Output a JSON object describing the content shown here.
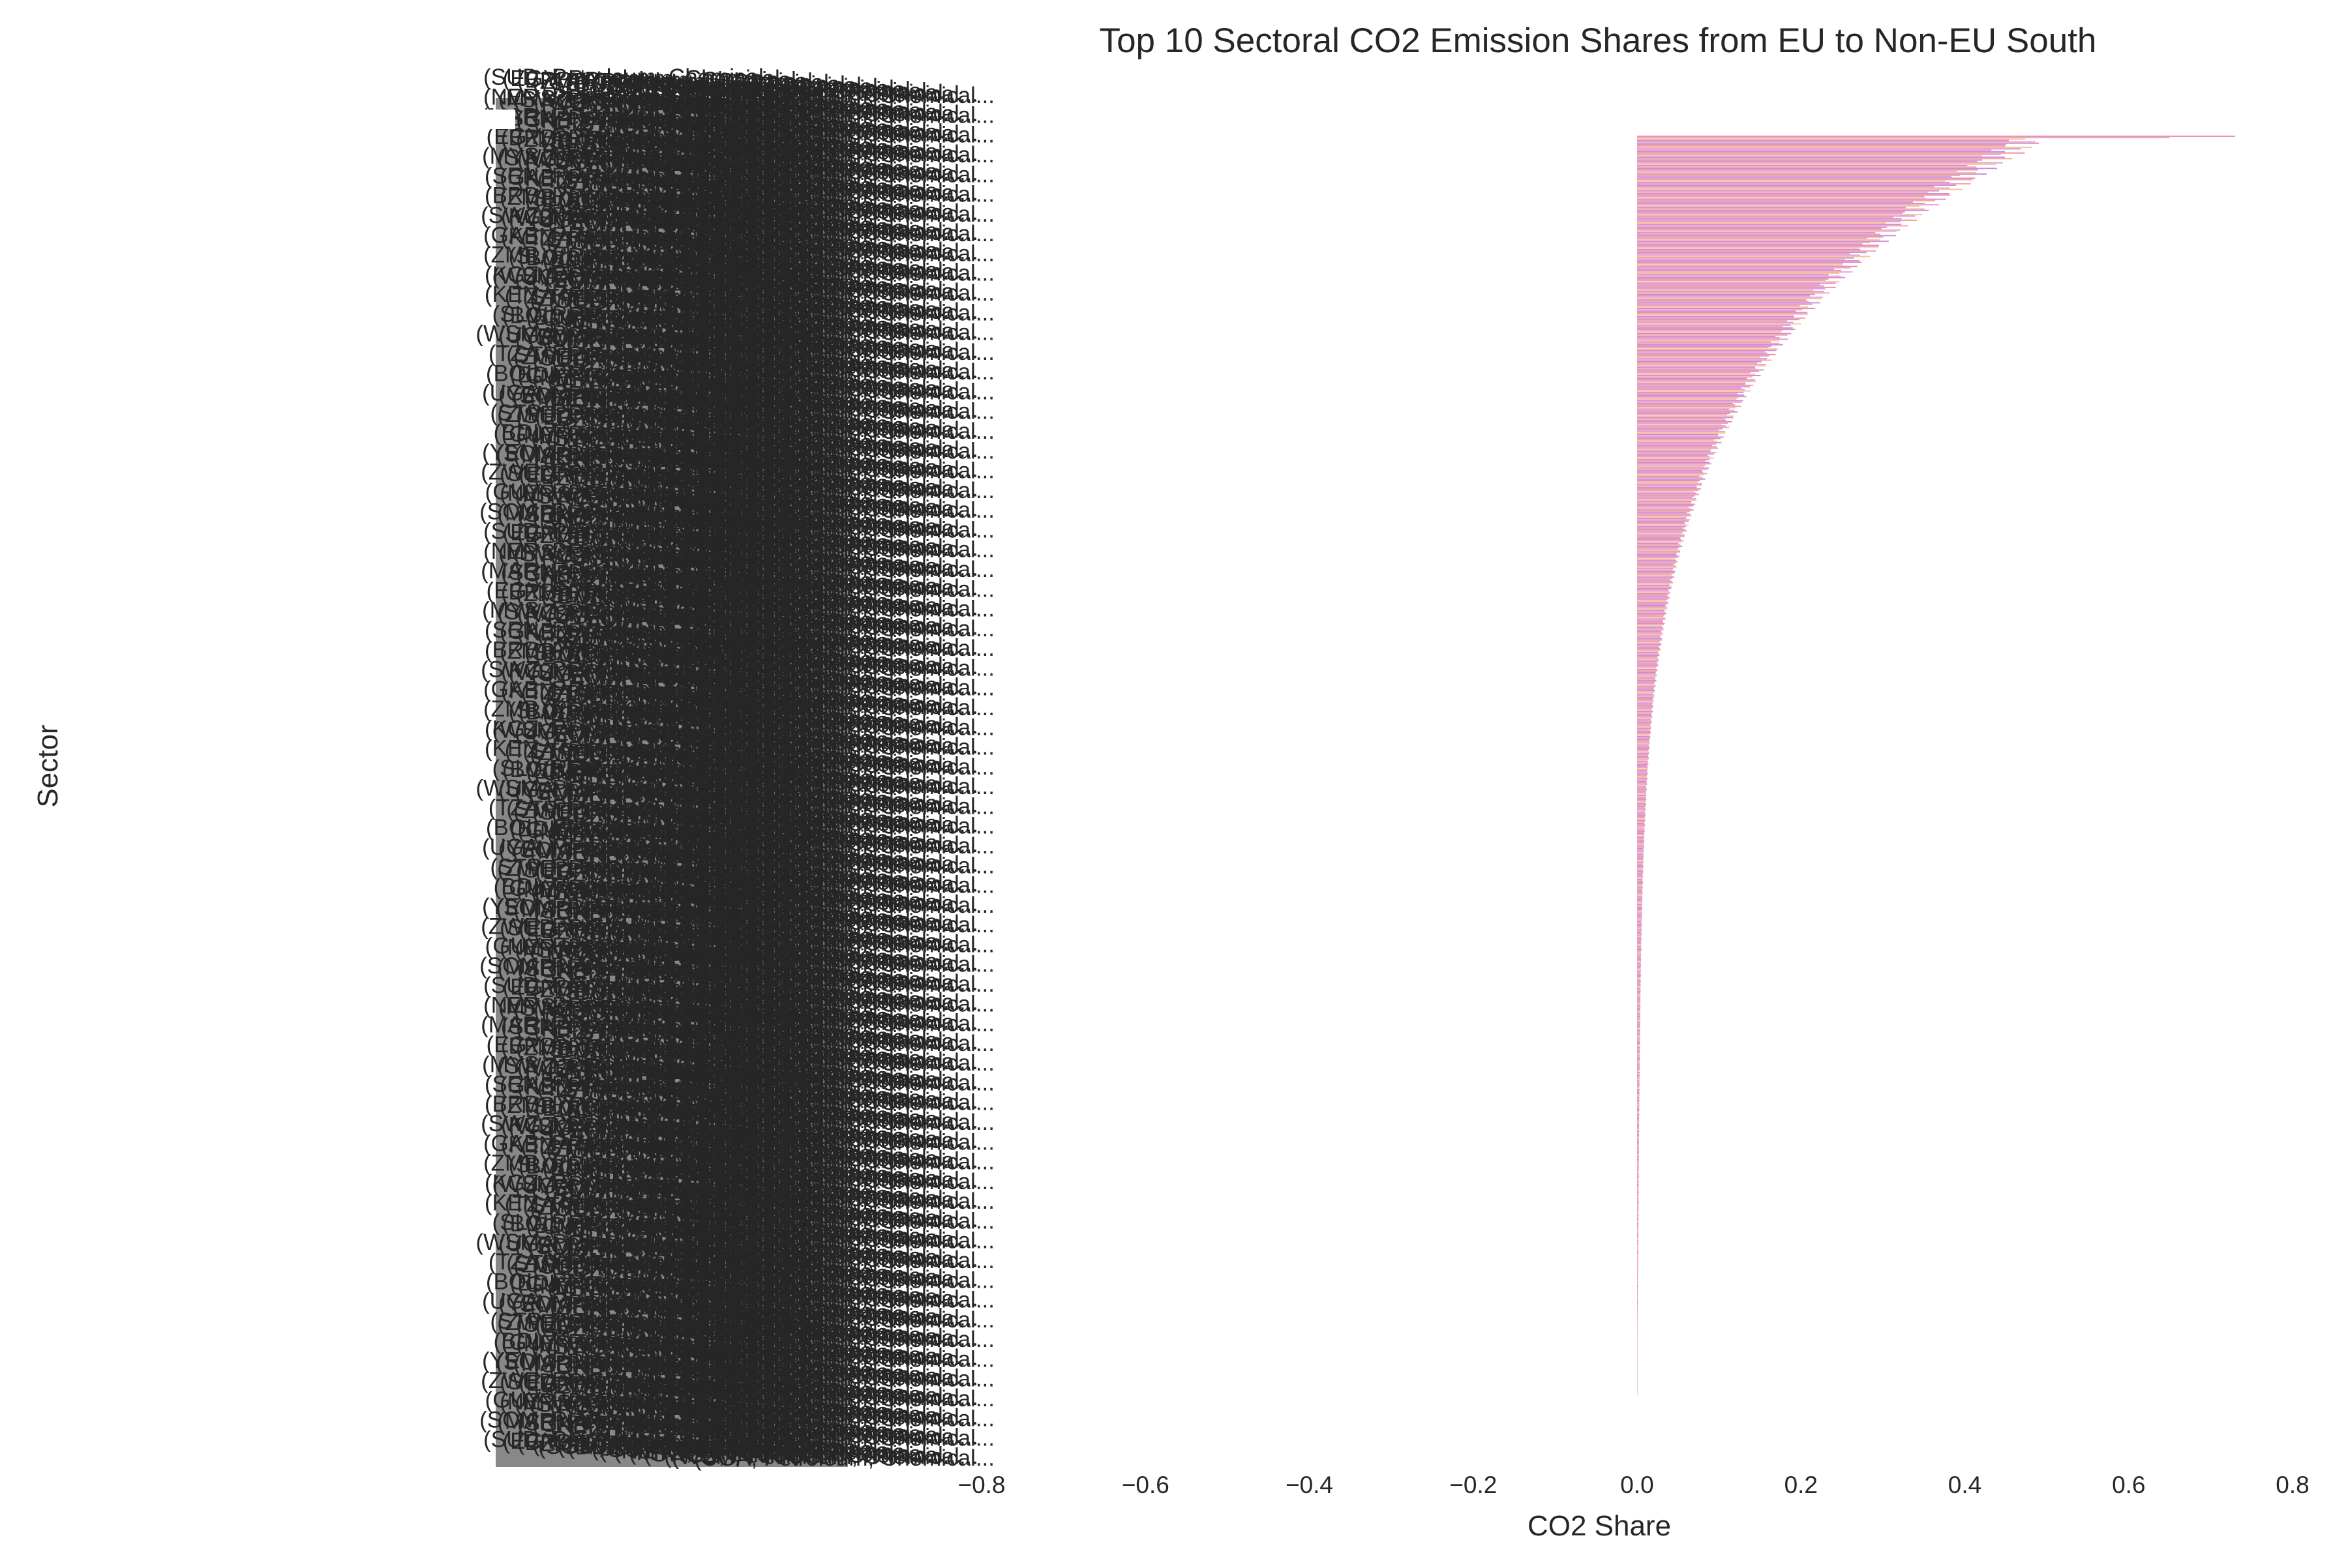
{
  "chart_data": {
    "type": "bar",
    "orientation": "horizontal",
    "title": "Top 10 Sectoral CO2 Emission Shares from EU to Non-EU South",
    "xlabel": "CO2 Share",
    "ylabel": "Sector",
    "xlim": [
      -0.8,
      0.8
    ],
    "xticks": [
      -0.8,
      -0.6,
      -0.4,
      -0.2,
      0.0,
      0.2,
      0.4,
      0.6,
      0.8
    ],
    "xtick_labels": [
      "−0.8",
      "−0.6",
      "−0.4",
      "−0.2",
      "0.0",
      "0.2",
      "0.4",
      "0.6",
      "0.8"
    ],
    "grid": false,
    "legend": "none",
    "palette": [
      "#f08ea0",
      "#e6a0d6",
      "#f5c59a",
      "#d48bd8",
      "#f4a6a6",
      "#c98ee0"
    ],
    "bar_count": 900,
    "max_value": 0.73,
    "second_value": 0.65,
    "decay_scale": 0.5,
    "decay_power": 0.42,
    "categories_visible": [
      "(SUD, Petroleum, Chemical...",
      "(NER, Petroleum, Chemical...",
      "(MAR, Petroleum, Chemical...",
      "(EGY, Petroleum, Chemical...",
      "(MYS, Petroleum, Chemical...",
      "(SEN, Petroleum, Chemical...",
      "(BRB, Petroleum, Chemical...",
      "(SWZ, Petroleum, Chemical...",
      "(GAB, Petroleum, Chemical...",
      "(ZMB, Petroleum, Chemical...",
      "(KGZ, Petroleum, Chemical...",
      "(KEN, Petroleum, Chemical...",
      "(SLV, Petroleum, Chemical...",
      "(WSM, Petroleum, Chemical...",
      "(TZA, Petroleum, Chemical...",
      "(BOL, Petroleum, Chemical...",
      "(UGA, Petroleum, Chemical...",
      "(STP, Petroleum, Chemical...",
      "(BDI, Petroleum, Chemical...",
      "(YEM, Petroleum, Chemical...",
      "(ZWE, Petroleum, Chemical...",
      "(GUY, Petroleum, Chemical...",
      "(SOM, Petroleum, Chemical..."
    ]
  }
}
